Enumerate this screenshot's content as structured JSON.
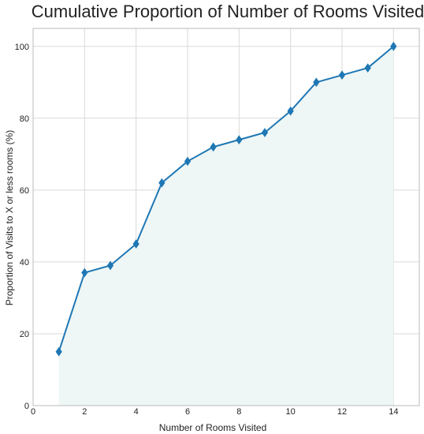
{
  "chart_data": {
    "type": "line",
    "title": "Cumulative Proportion of Number of Rooms Visited",
    "xlabel": "Number of Rooms Visited",
    "ylabel": "Proportion of Visits to X or less rooms (%)",
    "xlim": [
      0,
      15
    ],
    "ylim": [
      0,
      105
    ],
    "x_ticks": [
      0,
      2,
      4,
      6,
      8,
      10,
      12,
      14
    ],
    "y_ticks": [
      0,
      20,
      40,
      60,
      80,
      100
    ],
    "grid": true,
    "marker": "diamond",
    "fill_under": true,
    "series": [
      {
        "x": [
          1,
          2,
          3,
          4,
          5,
          6,
          7,
          8,
          9,
          10,
          11,
          12,
          13,
          14
        ],
        "values": [
          15,
          37,
          39,
          45,
          62,
          68,
          72,
          74,
          76,
          82,
          90,
          92,
          94,
          100
        ]
      }
    ]
  },
  "colors": {
    "line": "#1f77b4",
    "fill": "#eef7f6",
    "grid": "#d9d9d9",
    "frame": "#bbbbbb",
    "text": "#222222"
  }
}
